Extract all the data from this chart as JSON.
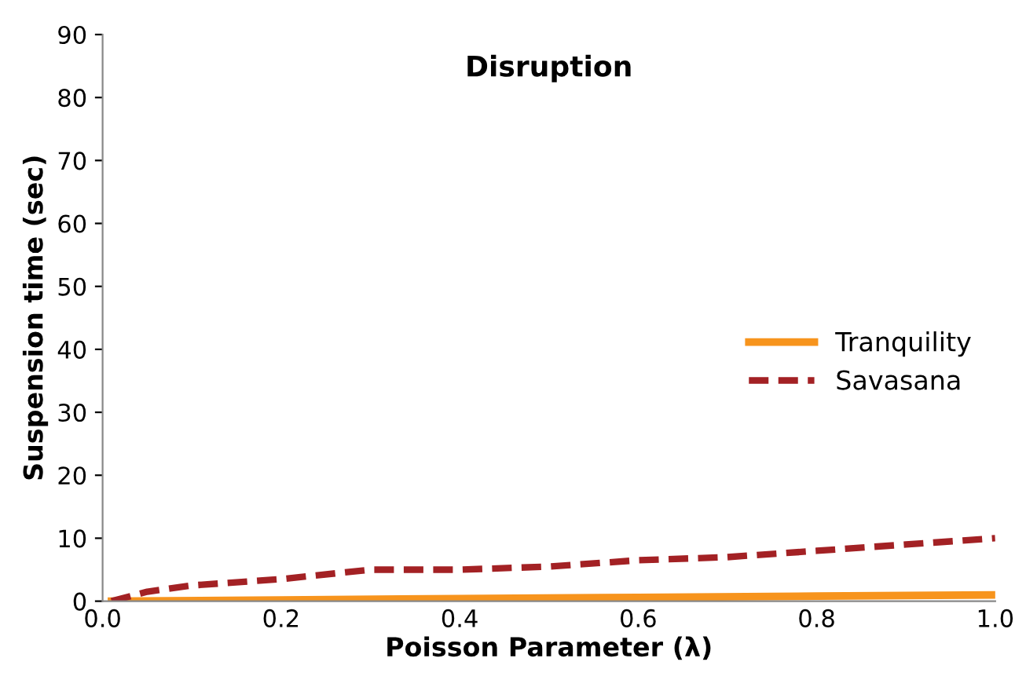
{
  "chart_data": {
    "type": "line",
    "title": "Disruption",
    "xlabel": "Poisson Parameter (λ)",
    "ylabel": "Suspension time (sec)",
    "xlim": [
      0,
      1
    ],
    "xticks": [
      {
        "value": 0,
        "label": "0.0"
      },
      {
        "value": 0.2,
        "label": "0.2"
      },
      {
        "value": 0.4,
        "label": "0.4"
      },
      {
        "value": 0.6,
        "label": "0.6"
      },
      {
        "value": 0.8,
        "label": "0.8"
      },
      {
        "value": 1,
        "label": "1.0"
      }
    ],
    "ylim": [
      0,
      90
    ],
    "yticks": [
      0,
      10,
      20,
      30,
      40,
      50,
      60,
      70,
      80,
      90
    ],
    "grid": false,
    "legend": "right",
    "series": [
      {
        "name": "Tranquility",
        "color": "#f7941d",
        "line_style": "solid",
        "x": [
          0.01,
          0.2,
          0.4,
          0.6,
          0.8,
          1.0
        ],
        "values": [
          0,
          0.2,
          0.4,
          0.6,
          0.8,
          1
        ]
      },
      {
        "name": "Savasana",
        "color": "#a32124",
        "line_style": "dashed",
        "x": [
          0.01,
          0.05,
          0.1,
          0.2,
          0.3,
          0.4,
          0.5,
          0.6,
          0.7,
          0.8,
          0.9,
          1.0
        ],
        "values": [
          0,
          1.5,
          2.5,
          3.5,
          5,
          5,
          5.5,
          6.5,
          7,
          8,
          9,
          10
        ]
      }
    ]
  }
}
